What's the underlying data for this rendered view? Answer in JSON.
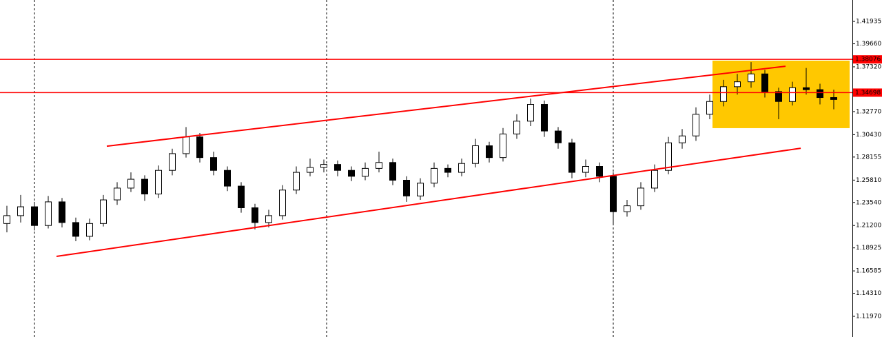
{
  "chart_data": {
    "type": "candlestick",
    "ohlc": [
      [
        1.214,
        1.232,
        1.205,
        1.222
      ],
      [
        1.222,
        1.243,
        1.215,
        1.231
      ],
      [
        1.231,
        1.236,
        1.207,
        1.212
      ],
      [
        1.212,
        1.242,
        1.209,
        1.236
      ],
      [
        1.236,
        1.24,
        1.21,
        1.215
      ],
      [
        1.215,
        1.22,
        1.196,
        1.201
      ],
      [
        1.201,
        1.219,
        1.197,
        1.214
      ],
      [
        1.214,
        1.243,
        1.211,
        1.238
      ],
      [
        1.238,
        1.256,
        1.233,
        1.25
      ],
      [
        1.25,
        1.266,
        1.246,
        1.259
      ],
      [
        1.259,
        1.263,
        1.237,
        1.244
      ],
      [
        1.244,
        1.273,
        1.24,
        1.268
      ],
      [
        1.268,
        1.29,
        1.263,
        1.285
      ],
      [
        1.285,
        1.312,
        1.281,
        1.302
      ],
      [
        1.302,
        1.306,
        1.276,
        1.281
      ],
      [
        1.281,
        1.287,
        1.263,
        1.268
      ],
      [
        1.268,
        1.272,
        1.247,
        1.252
      ],
      [
        1.252,
        1.256,
        1.225,
        1.23
      ],
      [
        1.23,
        1.234,
        1.208,
        1.215
      ],
      [
        1.215,
        1.228,
        1.21,
        1.222
      ],
      [
        1.222,
        1.253,
        1.218,
        1.248
      ],
      [
        1.248,
        1.272,
        1.244,
        1.266
      ],
      [
        1.266,
        1.28,
        1.262,
        1.271
      ],
      [
        1.271,
        1.279,
        1.266,
        1.274
      ],
      [
        1.274,
        1.278,
        1.262,
        1.268
      ],
      [
        1.268,
        1.272,
        1.257,
        1.262
      ],
      [
        1.262,
        1.276,
        1.258,
        1.27
      ],
      [
        1.27,
        1.287,
        1.266,
        1.276
      ],
      [
        1.276,
        1.28,
        1.253,
        1.258
      ],
      [
        1.258,
        1.262,
        1.236,
        1.242
      ],
      [
        1.242,
        1.26,
        1.238,
        1.255
      ],
      [
        1.255,
        1.276,
        1.251,
        1.27
      ],
      [
        1.27,
        1.274,
        1.261,
        1.266
      ],
      [
        1.266,
        1.28,
        1.262,
        1.275
      ],
      [
        1.275,
        1.3,
        1.271,
        1.293
      ],
      [
        1.293,
        1.297,
        1.276,
        1.281
      ],
      [
        1.281,
        1.311,
        1.277,
        1.305
      ],
      [
        1.305,
        1.325,
        1.3,
        1.318
      ],
      [
        1.318,
        1.341,
        1.313,
        1.335
      ],
      [
        1.335,
        1.339,
        1.302,
        1.308
      ],
      [
        1.308,
        1.312,
        1.29,
        1.296
      ],
      [
        1.296,
        1.3,
        1.26,
        1.266
      ],
      [
        1.266,
        1.279,
        1.261,
        1.272
      ],
      [
        1.272,
        1.276,
        1.256,
        1.262
      ],
      [
        1.262,
        1.266,
        1.214,
        1.226
      ],
      [
        1.226,
        1.238,
        1.221,
        1.232
      ],
      [
        1.232,
        1.256,
        1.228,
        1.25
      ],
      [
        1.25,
        1.274,
        1.246,
        1.268
      ],
      [
        1.268,
        1.302,
        1.264,
        1.296
      ],
      [
        1.296,
        1.31,
        1.29,
        1.303
      ],
      [
        1.303,
        1.332,
        1.298,
        1.325
      ],
      [
        1.325,
        1.345,
        1.32,
        1.338
      ],
      [
        1.338,
        1.36,
        1.333,
        1.353
      ],
      [
        1.353,
        1.366,
        1.345,
        1.358
      ],
      [
        1.358,
        1.378,
        1.352,
        1.366
      ],
      [
        1.366,
        1.37,
        1.342,
        1.348
      ],
      [
        1.348,
        1.352,
        1.32,
        1.338
      ],
      [
        1.338,
        1.358,
        1.334,
        1.352
      ],
      [
        1.352,
        1.372,
        1.345,
        1.35
      ],
      [
        1.35,
        1.356,
        1.335,
        1.342
      ],
      [
        1.342,
        1.35,
        1.33,
        1.34
      ]
    ],
    "ylim": [
      1.0987,
      1.4411
    ],
    "yticks": [
      1.41935,
      {
        "value": 1.3966,
        "label": "1.39660"
      },
      {
        "value": 1.3732,
        "label": "1.37320"
      },
      {
        "value": 1.3277,
        "label": "1.32770"
      },
      {
        "value": 1.3043,
        "label": "1.30430"
      },
      1.28155,
      {
        "value": 1.2581,
        "label": "1.25810"
      },
      {
        "value": 1.2354,
        "label": "1.23540"
      },
      {
        "value": 1.212,
        "label": "1.21200"
      },
      1.18925,
      1.16585,
      {
        "value": 1.1431,
        "label": "1.14310"
      },
      {
        "value": 1.1197,
        "label": "1.11970"
      }
    ],
    "levels": [
      1.38076,
      1.34698
    ],
    "level_color": "#ff0000",
    "trend_lines": [
      {
        "x": [
          7.25,
          56.5
        ],
        "y": [
          1.2926,
          1.3738
        ]
      },
      {
        "x": [
          3.6,
          57.6
        ],
        "y": [
          1.1806,
          1.2905
        ]
      }
    ],
    "zone": {
      "x": [
        51.2,
        61.15
      ],
      "y": [
        1.3109,
        1.3795
      ],
      "color": "#ffc800"
    }
  }
}
